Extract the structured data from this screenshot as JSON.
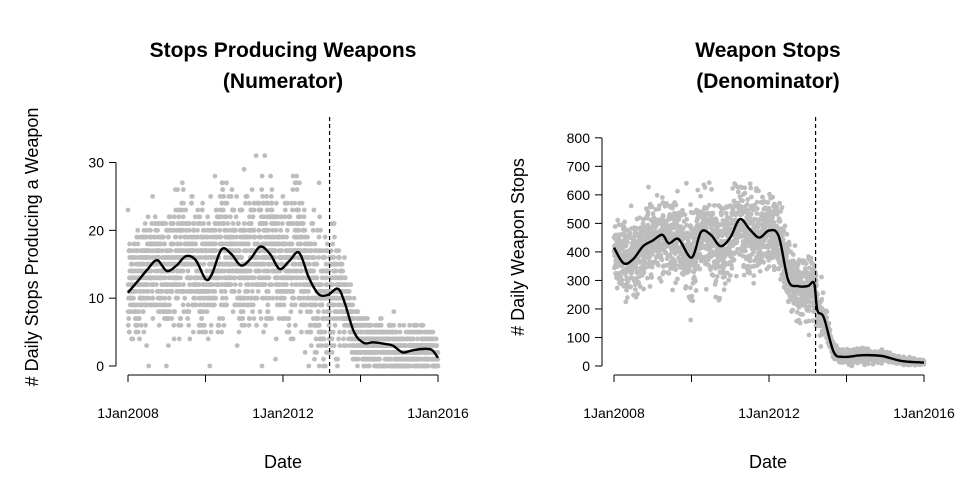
{
  "chart_data": [
    {
      "type": "scatter",
      "title_line1": "Stops Producing Weapons",
      "title_line2": "(Numerator)",
      "xlabel": "Date",
      "ylabel": "# Daily Stops Producing a Weapon",
      "x_ticks": [
        "1Jan2008",
        "",
        "1Jan2012",
        "",
        "1Jan2016"
      ],
      "x_tick_labels_printed": [
        "1Jan2008",
        "1Jan2012",
        "1Jan2016"
      ],
      "xlim": [
        "2008-01-01",
        "2016-01-01"
      ],
      "y_ticks": [
        0,
        10,
        20,
        30
      ],
      "ylim": [
        0,
        37
      ],
      "vline_date": "2013-03-15",
      "points_color": "#bdbdbd",
      "smooth_color": "#000000",
      "smooth": [
        {
          "x": "2008-01-01",
          "y": 10.8
        },
        {
          "x": "2008-04-01",
          "y": 12.5
        },
        {
          "x": "2008-07-01",
          "y": 14.2
        },
        {
          "x": "2008-10-01",
          "y": 15.6
        },
        {
          "x": "2009-01-01",
          "y": 14.0
        },
        {
          "x": "2009-04-01",
          "y": 14.8
        },
        {
          "x": "2009-07-01",
          "y": 16.2
        },
        {
          "x": "2009-10-01",
          "y": 15.6
        },
        {
          "x": "2010-01-01",
          "y": 12.8
        },
        {
          "x": "2010-03-01",
          "y": 13.5
        },
        {
          "x": "2010-06-01",
          "y": 17.2
        },
        {
          "x": "2010-09-01",
          "y": 16.5
        },
        {
          "x": "2010-12-01",
          "y": 14.8
        },
        {
          "x": "2011-03-01",
          "y": 15.8
        },
        {
          "x": "2011-06-01",
          "y": 17.6
        },
        {
          "x": "2011-09-01",
          "y": 16.5
        },
        {
          "x": "2011-12-01",
          "y": 14.3
        },
        {
          "x": "2012-03-01",
          "y": 15.5
        },
        {
          "x": "2012-06-01",
          "y": 16.7
        },
        {
          "x": "2012-09-01",
          "y": 13.0
        },
        {
          "x": "2012-12-01",
          "y": 10.6
        },
        {
          "x": "2013-03-01",
          "y": 10.5
        },
        {
          "x": "2013-06-01",
          "y": 11.4
        },
        {
          "x": "2013-08-01",
          "y": 9.5
        },
        {
          "x": "2013-11-01",
          "y": 5.0
        },
        {
          "x": "2014-02-01",
          "y": 3.4
        },
        {
          "x": "2014-05-01",
          "y": 3.5
        },
        {
          "x": "2014-08-01",
          "y": 3.3
        },
        {
          "x": "2014-11-01",
          "y": 3.0
        },
        {
          "x": "2015-02-01",
          "y": 2.0
        },
        {
          "x": "2015-05-01",
          "y": 2.3
        },
        {
          "x": "2015-08-01",
          "y": 2.5
        },
        {
          "x": "2015-11-01",
          "y": 2.4
        },
        {
          "x": "2016-01-01",
          "y": 1.2
        }
      ],
      "noise_spread": [
        {
          "x": "2008-01-01",
          "spread": 8
        },
        {
          "x": "2013-03-15",
          "spread": 9
        },
        {
          "x": "2013-07-01",
          "spread": 6
        },
        {
          "x": "2014-01-01",
          "spread": 3.5
        },
        {
          "x": "2016-01-01",
          "spread": 2.5
        }
      ],
      "n_points": 2900,
      "integer_values": true
    },
    {
      "type": "scatter",
      "title_line1": "Weapon Stops",
      "title_line2": "(Denominator)",
      "xlabel": "Date",
      "ylabel": "# Daily Weapon Stops",
      "x_ticks": [
        "1Jan2008",
        "",
        "1Jan2012",
        "",
        "1Jan2016"
      ],
      "x_tick_labels_printed": [
        "1Jan2008",
        "1Jan2012",
        "1Jan2016"
      ],
      "xlim": [
        "2008-01-01",
        "2016-01-01"
      ],
      "y_ticks": [
        0,
        100,
        200,
        300,
        400,
        500,
        600,
        700,
        800
      ],
      "ylim": [
        0,
        880
      ],
      "vline_date": "2013-03-15",
      "points_color": "#bdbdbd",
      "smooth_color": "#000000",
      "smooth": [
        {
          "x": "2008-01-01",
          "y": 415
        },
        {
          "x": "2008-04-01",
          "y": 360
        },
        {
          "x": "2008-07-01",
          "y": 375
        },
        {
          "x": "2008-10-01",
          "y": 420
        },
        {
          "x": "2009-01-01",
          "y": 440
        },
        {
          "x": "2009-04-01",
          "y": 460
        },
        {
          "x": "2009-06-01",
          "y": 430
        },
        {
          "x": "2009-09-01",
          "y": 445
        },
        {
          "x": "2010-01-01",
          "y": 380
        },
        {
          "x": "2010-04-01",
          "y": 470
        },
        {
          "x": "2010-07-01",
          "y": 460
        },
        {
          "x": "2010-10-01",
          "y": 420
        },
        {
          "x": "2011-01-01",
          "y": 450
        },
        {
          "x": "2011-04-01",
          "y": 515
        },
        {
          "x": "2011-07-01",
          "y": 480
        },
        {
          "x": "2011-10-01",
          "y": 450
        },
        {
          "x": "2012-01-01",
          "y": 475
        },
        {
          "x": "2012-04-01",
          "y": 455
        },
        {
          "x": "2012-07-01",
          "y": 300
        },
        {
          "x": "2012-10-01",
          "y": 280
        },
        {
          "x": "2013-01-01",
          "y": 280
        },
        {
          "x": "2013-03-01",
          "y": 290
        },
        {
          "x": "2013-04-01",
          "y": 195
        },
        {
          "x": "2013-06-01",
          "y": 170
        },
        {
          "x": "2013-09-01",
          "y": 50
        },
        {
          "x": "2013-12-01",
          "y": 32
        },
        {
          "x": "2014-06-01",
          "y": 38
        },
        {
          "x": "2014-12-01",
          "y": 35
        },
        {
          "x": "2015-06-01",
          "y": 18
        },
        {
          "x": "2016-01-01",
          "y": 12
        }
      ],
      "noise_spread": [
        {
          "x": "2008-01-01",
          "spread": 110
        },
        {
          "x": "2011-06-01",
          "spread": 130
        },
        {
          "x": "2013-03-15",
          "spread": 90
        },
        {
          "x": "2013-08-01",
          "spread": 25
        },
        {
          "x": "2016-01-01",
          "spread": 8
        }
      ],
      "n_points": 2900,
      "integer_values": false
    }
  ]
}
